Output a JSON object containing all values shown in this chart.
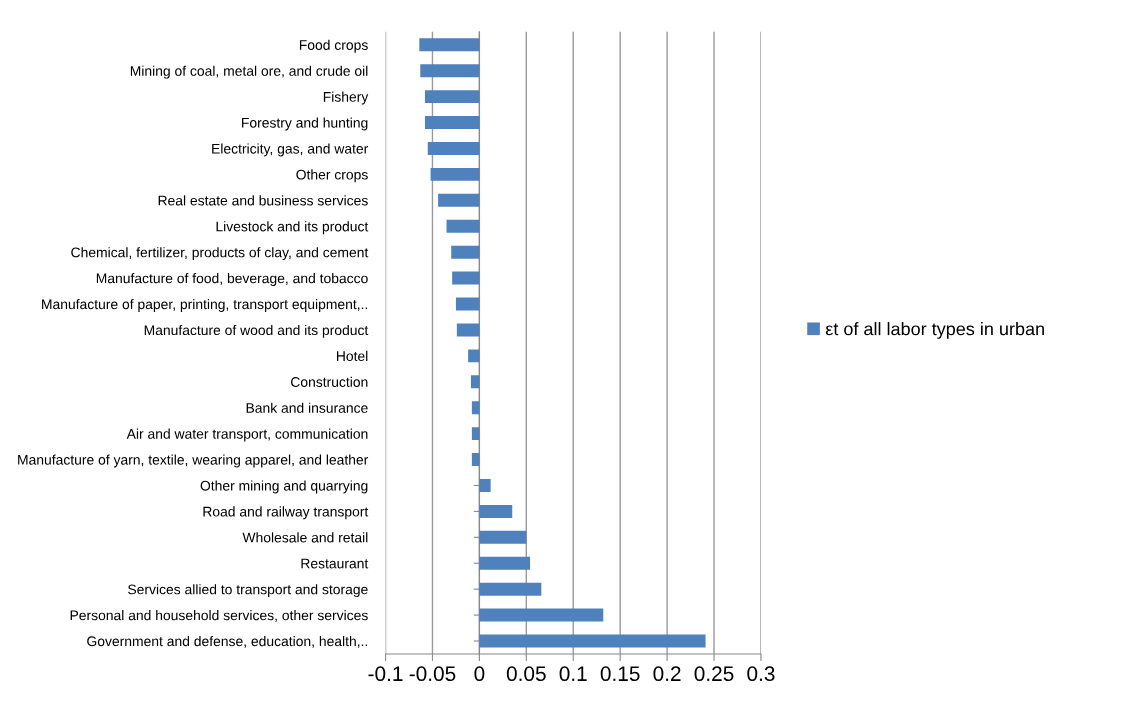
{
  "chart_data": {
    "type": "bar",
    "orientation": "horizontal",
    "categories": [
      "Food crops",
      "Mining of coal, metal ore, and crude oil",
      "Fishery",
      "Forestry and hunting",
      "Electricity, gas, and water",
      "Other crops",
      "Real estate and business services",
      "Livestock and its product",
      "Chemical, fertilizer, products of clay, and cement",
      "Manufacture of food, beverage, and tobacco",
      "Manufacture of paper, printing, transport equipment,..",
      "Manufacture of wood and its product",
      "Hotel",
      "Construction",
      "Bank and insurance",
      "Air and water transport, communication",
      "Manufacture of yarn, textile, wearing apparel, and leather",
      "Other mining and quarrying",
      "Road and railway transport",
      "Wholesale and retail",
      "Restaurant",
      "Services allied to transport and storage",
      "Personal and household services, other services",
      "Government and defense, education, health,.."
    ],
    "series": [
      {
        "name": "εt of all labor types in urban",
        "color": "#4f81bd",
        "values": [
          -0.064,
          -0.063,
          -0.058,
          -0.058,
          -0.055,
          -0.052,
          -0.044,
          -0.035,
          -0.03,
          -0.029,
          -0.025,
          -0.024,
          -0.012,
          -0.009,
          -0.008,
          -0.008,
          -0.008,
          0.012,
          0.035,
          0.05,
          0.054,
          0.066,
          0.132,
          0.241
        ]
      }
    ],
    "xlim": [
      -0.1,
      0.3
    ],
    "xticks": [
      -0.1,
      -0.05,
      0,
      0.05,
      0.1,
      0.15,
      0.2,
      0.25,
      0.3
    ],
    "grid": "x",
    "legend": "right"
  }
}
